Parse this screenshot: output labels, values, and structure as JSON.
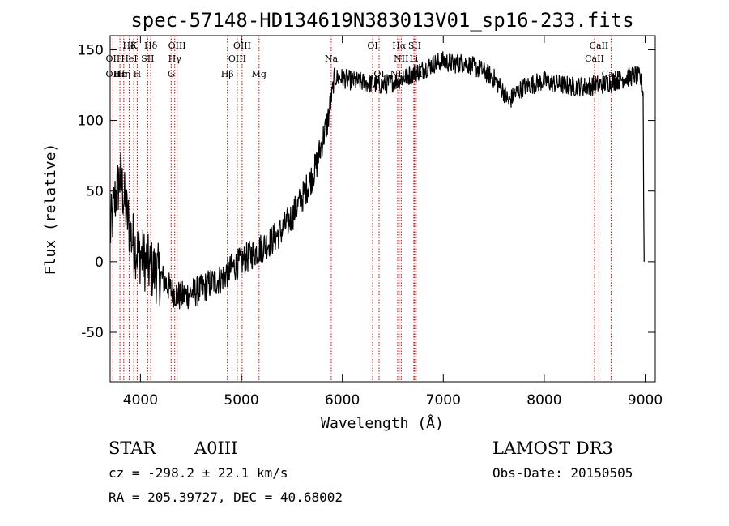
{
  "chart_data": {
    "type": "line",
    "title": "spec-57148-HD134619N383013V01_sp16-233.fits",
    "xlabel": "Wavelength (Å)",
    "ylabel": "Flux (relative)",
    "xlim": [
      3700,
      9100
    ],
    "ylim": [
      -85,
      160
    ],
    "x_ticks": [
      4000,
      5000,
      6000,
      7000,
      8000,
      9000
    ],
    "y_ticks": [
      -50,
      0,
      50,
      100,
      150
    ],
    "spectrum_anchors": [
      [
        3700,
        20
      ],
      [
        3750,
        45
      ],
      [
        3800,
        60
      ],
      [
        3850,
        40
      ],
      [
        3900,
        20
      ],
      [
        3950,
        10
      ],
      [
        4000,
        5
      ],
      [
        4100,
        -5
      ],
      [
        4200,
        -10
      ],
      [
        4300,
        -20
      ],
      [
        4400,
        -25
      ],
      [
        4500,
        -22
      ],
      [
        4600,
        -20
      ],
      [
        4700,
        -15
      ],
      [
        4800,
        -12
      ],
      [
        4900,
        -5
      ],
      [
        5000,
        0
      ],
      [
        5100,
        5
      ],
      [
        5200,
        10
      ],
      [
        5300,
        15
      ],
      [
        5400,
        22
      ],
      [
        5500,
        32
      ],
      [
        5600,
        45
      ],
      [
        5700,
        60
      ],
      [
        5750,
        70
      ],
      [
        5800,
        85
      ],
      [
        5850,
        98
      ],
      [
        5880,
        110
      ],
      [
        5920,
        130
      ],
      [
        6000,
        130
      ],
      [
        6100,
        128
      ],
      [
        6200,
        127
      ],
      [
        6300,
        126
      ],
      [
        6400,
        125
      ],
      [
        6500,
        127
      ],
      [
        6600,
        130
      ],
      [
        6700,
        133
      ],
      [
        6800,
        136
      ],
      [
        6900,
        140
      ],
      [
        7000,
        142
      ],
      [
        7100,
        140
      ],
      [
        7200,
        141
      ],
      [
        7300,
        138
      ],
      [
        7400,
        135
      ],
      [
        7500,
        130
      ],
      [
        7600,
        120
      ],
      [
        7650,
        113
      ],
      [
        7700,
        118
      ],
      [
        7800,
        124
      ],
      [
        7900,
        126
      ],
      [
        8000,
        128
      ],
      [
        8100,
        126
      ],
      [
        8200,
        125
      ],
      [
        8300,
        124
      ],
      [
        8400,
        124
      ],
      [
        8500,
        125
      ],
      [
        8600,
        126
      ],
      [
        8700,
        128
      ],
      [
        8800,
        130
      ],
      [
        8900,
        132
      ],
      [
        8950,
        130
      ],
      [
        8980,
        120
      ]
    ],
    "final_drop": [
      [
        8985,
        40
      ],
      [
        8990,
        0
      ]
    ],
    "line_labels": [
      {
        "text": "Hδ",
        "wave": 3889,
        "row": 1
      },
      {
        "text": "K",
        "wave": 3934,
        "row": 1
      },
      {
        "text": "Hδ",
        "wave": 4102,
        "row": 1
      },
      {
        "text": "OIII",
        "wave": 4363,
        "row": 1
      },
      {
        "text": "OIII",
        "wave": 5007,
        "row": 1
      },
      {
        "text": "OI",
        "wave": 6300,
        "row": 1
      },
      {
        "text": "Hα",
        "wave": 6563,
        "row": 1
      },
      {
        "text": "SII",
        "wave": 6717,
        "row": 1
      },
      {
        "text": "CaII",
        "wave": 8542,
        "row": 1
      },
      {
        "text": "OII",
        "wave": 3727,
        "row": 2
      },
      {
        "text": "HeI",
        "wave": 3889,
        "row": 2
      },
      {
        "text": "SII",
        "wave": 4072,
        "row": 2
      },
      {
        "text": "Hγ",
        "wave": 4340,
        "row": 2
      },
      {
        "text": "OIII",
        "wave": 4959,
        "row": 2
      },
      {
        "text": "Na",
        "wave": 5890,
        "row": 2
      },
      {
        "text": "NII",
        "wave": 6583,
        "row": 2
      },
      {
        "text": "Li",
        "wave": 6708,
        "row": 2
      },
      {
        "text": "CaII",
        "wave": 8498,
        "row": 2
      },
      {
        "text": "OII",
        "wave": 3727,
        "row": 3
      },
      {
        "text": "Hε",
        "wave": 3797,
        "row": 3
      },
      {
        "text": "Hη",
        "wave": 3835,
        "row": 3
      },
      {
        "text": "H",
        "wave": 3968,
        "row": 3
      },
      {
        "text": "G",
        "wave": 4304,
        "row": 3
      },
      {
        "text": "Hβ",
        "wave": 4861,
        "row": 3
      },
      {
        "text": "Mg",
        "wave": 5175,
        "row": 3
      },
      {
        "text": "OI",
        "wave": 6364,
        "row": 3
      },
      {
        "text": "NII",
        "wave": 6548,
        "row": 3
      },
      {
        "text": "SII",
        "wave": 6731,
        "row": 3
      },
      {
        "text": "CaII",
        "wave": 8662,
        "row": 3
      }
    ],
    "marker_lines": [
      3727,
      3797,
      3835,
      3889,
      3934,
      3968,
      4072,
      4102,
      4304,
      4340,
      4363,
      4861,
      4959,
      5007,
      5175,
      5890,
      6300,
      6364,
      6548,
      6563,
      6583,
      6708,
      6717,
      6731,
      8498,
      8542,
      8662
    ],
    "colors": {
      "spectrum": "#000000",
      "marker": "#cc0000",
      "axes": "#000000"
    }
  },
  "info": {
    "object_class": "STAR",
    "subclass": "A0III",
    "survey": "LAMOST DR3",
    "velocity": "cz = -298.2 ± 22.1 km/s",
    "obs_date": "Obs-Date: 20150505",
    "coordinates": "RA = 205.39727, DEC =  40.68002"
  }
}
